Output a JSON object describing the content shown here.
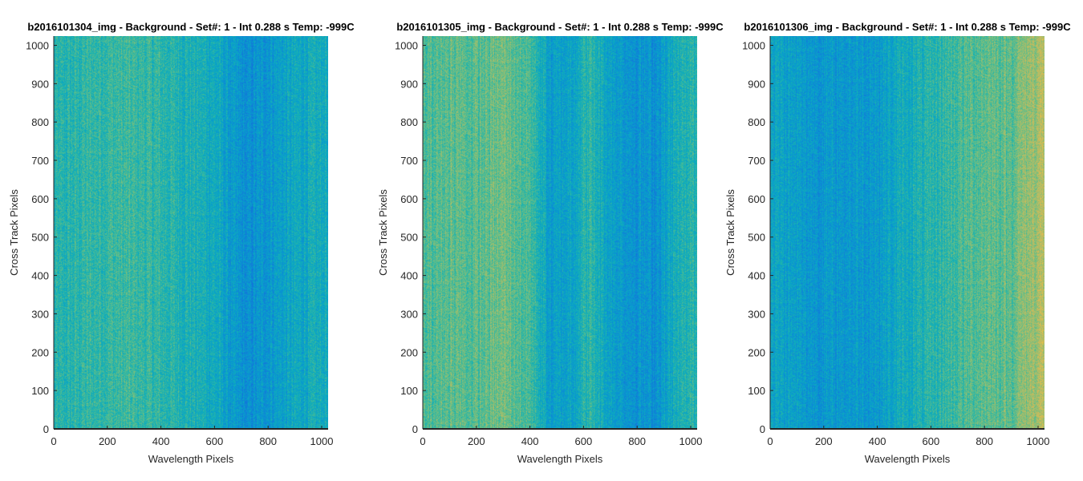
{
  "chart_data": [
    {
      "type": "heatmap",
      "title": "b2016101304_img - Background - Set#: 1 - Int 0.288 s Temp: -999C",
      "xlabel": "Wavelength Pixels",
      "ylabel": "Cross Track Pixels",
      "xlim": [
        0,
        1024
      ],
      "ylim": [
        0,
        1024
      ],
      "xticks": [
        0,
        200,
        400,
        600,
        800,
        1000
      ],
      "yticks": [
        0,
        100,
        200,
        300,
        400,
        500,
        600,
        700,
        800,
        900,
        1000
      ],
      "colormap": "parula",
      "column_profile": [
        {
          "x": 0,
          "v": 0.55
        },
        {
          "x": 100,
          "v": 0.58
        },
        {
          "x": 200,
          "v": 0.6
        },
        {
          "x": 300,
          "v": 0.6
        },
        {
          "x": 400,
          "v": 0.58
        },
        {
          "x": 500,
          "v": 0.55
        },
        {
          "x": 600,
          "v": 0.52
        },
        {
          "x": 660,
          "v": 0.45
        },
        {
          "x": 720,
          "v": 0.4
        },
        {
          "x": 800,
          "v": 0.45
        },
        {
          "x": 900,
          "v": 0.5
        },
        {
          "x": 1024,
          "v": 0.53
        }
      ]
    },
    {
      "type": "heatmap",
      "title": "b2016101305_img - Background - Set#: 1 - Int 0.288 s Temp: -999C",
      "xlabel": "Wavelength Pixels",
      "ylabel": "Cross Track Pixels",
      "xlim": [
        0,
        1024
      ],
      "ylim": [
        0,
        1024
      ],
      "xticks": [
        0,
        200,
        400,
        600,
        800,
        1000
      ],
      "yticks": [
        0,
        100,
        200,
        300,
        400,
        500,
        600,
        700,
        800,
        900,
        1000
      ],
      "colormap": "parula",
      "column_profile": [
        {
          "x": 0,
          "v": 0.62
        },
        {
          "x": 100,
          "v": 0.66
        },
        {
          "x": 200,
          "v": 0.64
        },
        {
          "x": 300,
          "v": 0.68
        },
        {
          "x": 400,
          "v": 0.62
        },
        {
          "x": 480,
          "v": 0.45
        },
        {
          "x": 560,
          "v": 0.5
        },
        {
          "x": 620,
          "v": 0.58
        },
        {
          "x": 700,
          "v": 0.48
        },
        {
          "x": 780,
          "v": 0.44
        },
        {
          "x": 860,
          "v": 0.42
        },
        {
          "x": 940,
          "v": 0.52
        },
        {
          "x": 1024,
          "v": 0.58
        }
      ]
    },
    {
      "type": "heatmap",
      "title": "b2016101306_img - Background - Set#: 1 - Int 0.288 s Temp: -999C",
      "xlabel": "Wavelength Pixels",
      "ylabel": "Cross Track Pixels",
      "xlim": [
        0,
        1024
      ],
      "ylim": [
        0,
        1024
      ],
      "xticks": [
        0,
        200,
        400,
        600,
        800,
        1000
      ],
      "yticks": [
        0,
        100,
        200,
        300,
        400,
        500,
        600,
        700,
        800,
        900,
        1000
      ],
      "colormap": "parula",
      "column_profile": [
        {
          "x": 0,
          "v": 0.5
        },
        {
          "x": 100,
          "v": 0.46
        },
        {
          "x": 200,
          "v": 0.44
        },
        {
          "x": 300,
          "v": 0.45
        },
        {
          "x": 400,
          "v": 0.46
        },
        {
          "x": 500,
          "v": 0.52
        },
        {
          "x": 600,
          "v": 0.56
        },
        {
          "x": 700,
          "v": 0.62
        },
        {
          "x": 800,
          "v": 0.66
        },
        {
          "x": 900,
          "v": 0.66
        },
        {
          "x": 950,
          "v": 0.72
        },
        {
          "x": 1024,
          "v": 0.78
        }
      ]
    }
  ]
}
